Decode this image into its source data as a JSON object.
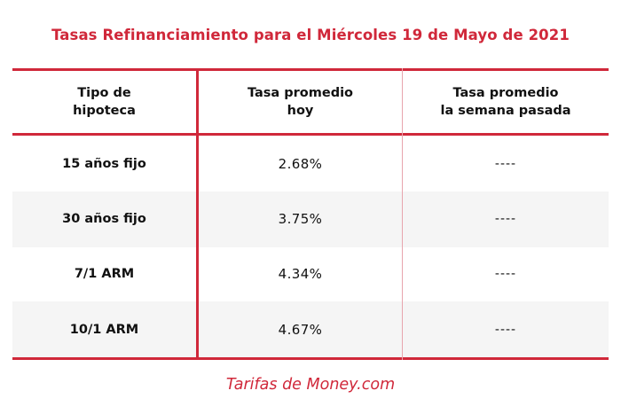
{
  "title": "Tasas Refinanciamiento para el Miércoles 19 de Mayo de 2021",
  "headers": [
    {
      "line1": "Tipo de",
      "line2": "hipoteca"
    },
    {
      "line1": "Tasa promedio",
      "line2": "hoy"
    },
    {
      "line1": "Tasa promedio",
      "line2": "la semana pasada"
    }
  ],
  "rows": [
    {
      "type": "15 años fijo",
      "rate": "2.68%",
      "last_week": "----"
    },
    {
      "type": "30 años fijo",
      "rate": "3.75%",
      "last_week": "----"
    },
    {
      "type": "7/1 ARM",
      "rate": "4.34%",
      "last_week": "----"
    },
    {
      "type": "10/1 ARM",
      "rate": "4.67%",
      "last_week": "----"
    }
  ],
  "footer": "Tarifas de Money.com",
  "colors": {
    "accent": "#d0283a",
    "row_shade": "#f5f5f5",
    "divider_light": "#e8a5ad"
  }
}
